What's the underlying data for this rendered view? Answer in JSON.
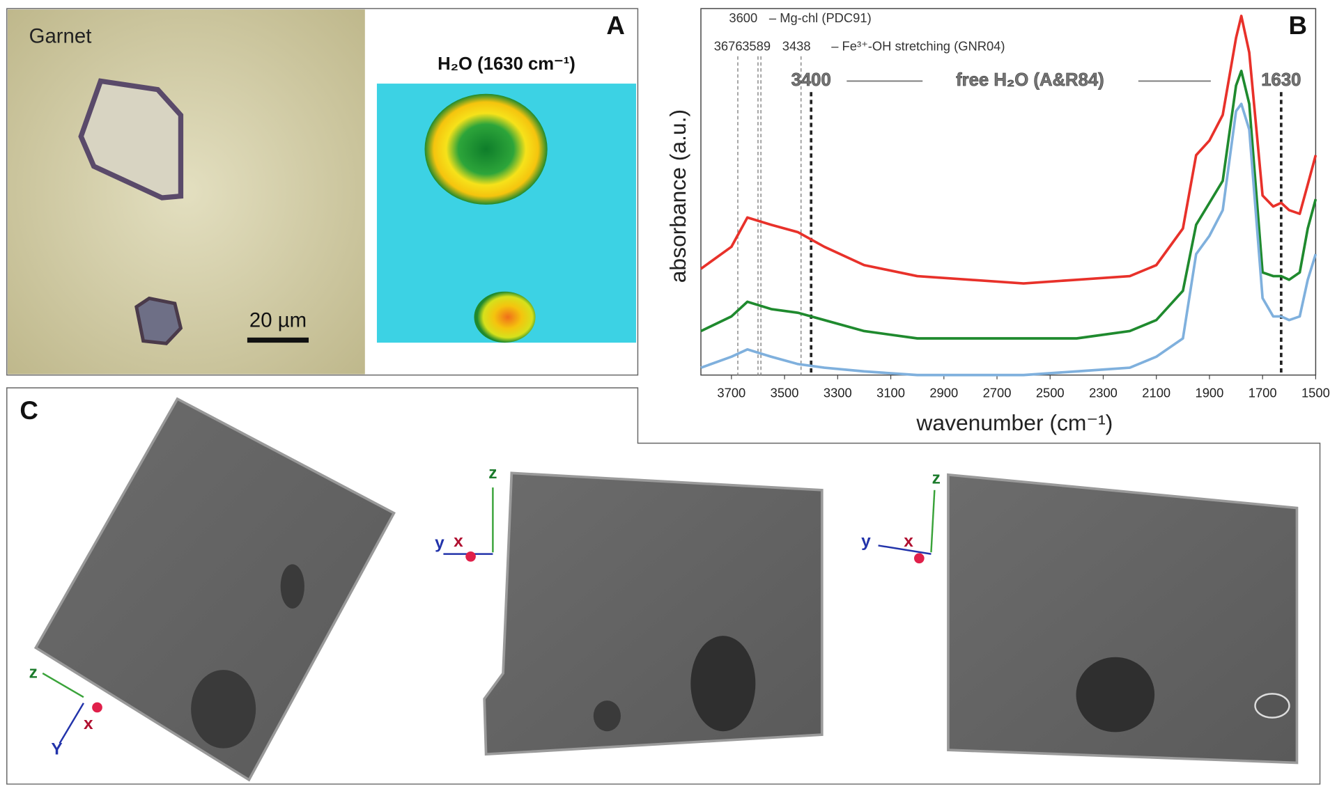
{
  "panel_a": {
    "label": "A",
    "photo_label": "Garnet",
    "scale_bar": "20 µm",
    "map_title": "H₂O (1630 cm⁻¹)"
  },
  "chart_data": {
    "type": "line",
    "label": "B",
    "x_label": "wavenumber (cm⁻¹)",
    "y_label": "absorbance (a.u.)",
    "xlim": [
      3815,
      1500
    ],
    "ylim": [
      0,
      1
    ],
    "xticks": [
      3700,
      3500,
      3300,
      3100,
      2900,
      2700,
      2500,
      2300,
      2100,
      1900,
      1700,
      1500
    ],
    "x": [
      3815,
      3700,
      3640,
      3550,
      3450,
      3350,
      3200,
      3000,
      2800,
      2600,
      2400,
      2200,
      2100,
      2000,
      1950,
      1900,
      1850,
      1800,
      1780,
      1750,
      1700,
      1660,
      1630,
      1600,
      1560,
      1530,
      1500
    ],
    "series": [
      {
        "color": "#e8312a",
        "values": [
          0.29,
          0.35,
          0.43,
          0.41,
          0.39,
          0.35,
          0.3,
          0.27,
          0.26,
          0.25,
          0.26,
          0.27,
          0.3,
          0.4,
          0.6,
          0.64,
          0.71,
          0.92,
          0.98,
          0.88,
          0.49,
          0.46,
          0.47,
          0.45,
          0.44,
          0.52,
          0.6
        ]
      },
      {
        "color": "#1f8a2e",
        "values": [
          0.12,
          0.16,
          0.2,
          0.18,
          0.17,
          0.15,
          0.12,
          0.1,
          0.1,
          0.1,
          0.1,
          0.12,
          0.15,
          0.23,
          0.41,
          0.47,
          0.53,
          0.79,
          0.83,
          0.74,
          0.28,
          0.27,
          0.27,
          0.26,
          0.28,
          0.4,
          0.48
        ]
      },
      {
        "color": "#7fb0dd",
        "values": [
          0.02,
          0.05,
          0.07,
          0.05,
          0.03,
          0.02,
          0.01,
          0.0,
          0.0,
          0.0,
          0.01,
          0.02,
          0.05,
          0.1,
          0.33,
          0.38,
          0.45,
          0.72,
          0.74,
          0.67,
          0.21,
          0.16,
          0.16,
          0.15,
          0.16,
          0.26,
          0.33
        ]
      }
    ],
    "ref_lines": [
      3676,
      3600,
      3589,
      3438
    ],
    "water_lines": [
      3400,
      1630
    ],
    "notes": {
      "mg_chl": "– Mg-chl (PDC91)",
      "fe_oh": "– Fe³⁺-OH stretching (GNR04)",
      "free_water": "free H₂O (A&R84)"
    }
  },
  "panel_c": {
    "label": "C",
    "views": [
      {
        "axes": [
          "z",
          "Y",
          "x"
        ]
      },
      {
        "axes": [
          "z",
          "y",
          "x"
        ]
      },
      {
        "axes": [
          "z",
          "y",
          "x"
        ]
      }
    ]
  }
}
